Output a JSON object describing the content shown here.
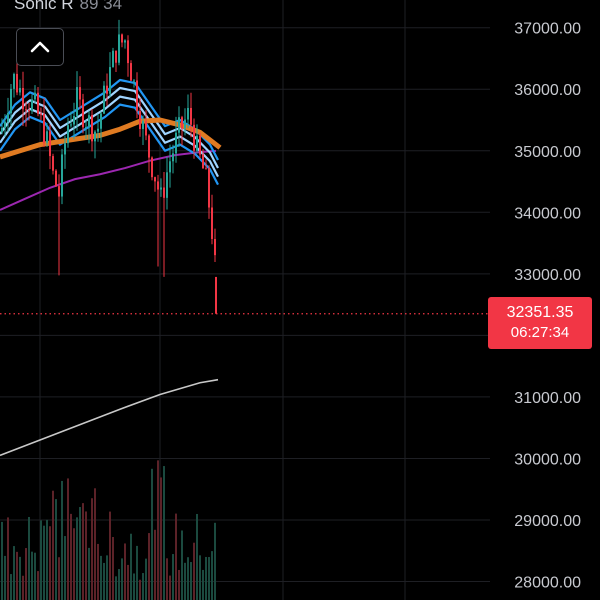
{
  "indicator": {
    "name": "Sonic R",
    "params": "89 34"
  },
  "collapse_icon": "chevron-up-icon",
  "colors": {
    "background": "#000000",
    "grid": "#1e1f24",
    "axis_text": "#c8cad0",
    "up": "#26a69a",
    "down": "#f23645",
    "ema_band": "#2196f3",
    "ema_band_light": "#9fd4ff",
    "ema_slow": "#e07b22",
    "ma_purple": "#9c27b0",
    "ma_white": "#c8c8c8",
    "last_price_line": "#f23645"
  },
  "last_price": {
    "value": "32351.35",
    "countdown": "06:27:34"
  },
  "chart_data": {
    "type": "candlestick",
    "y_axis": {
      "ticks": [
        "37000.00",
        "36000.00",
        "35000.00",
        "34000.00",
        "33000.00",
        "31000.00",
        "30000.00",
        "29000.00",
        "28000.00"
      ],
      "range": [
        27700,
        37450
      ]
    },
    "last_price_value": 32351.35,
    "grid": true
  }
}
